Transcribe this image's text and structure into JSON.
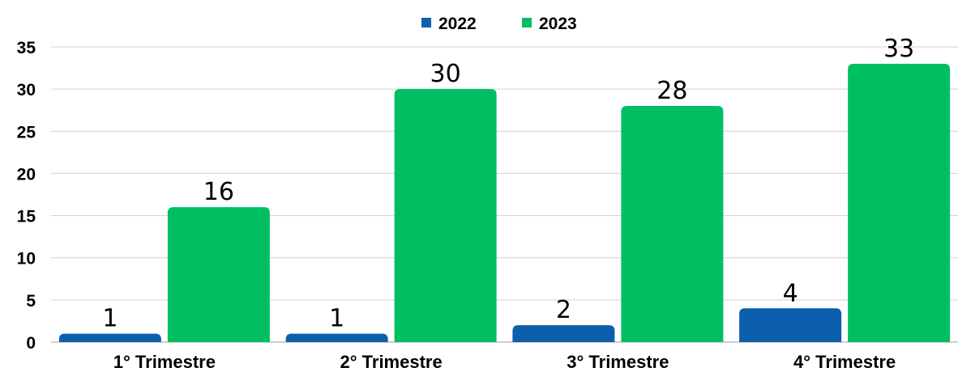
{
  "chart_data": {
    "type": "bar",
    "title": "",
    "xlabel": "",
    "ylabel": "",
    "categories": [
      "1° Trimestre",
      "2° Trimestre",
      "3° Trimestre",
      "4° Trimestre"
    ],
    "series": [
      {
        "name": "2022",
        "color": "#0b5fad",
        "values": [
          1,
          1,
          2,
          4
        ]
      },
      {
        "name": "2023",
        "color": "#00bf63",
        "values": [
          16,
          30,
          28,
          33
        ]
      }
    ],
    "ylim": [
      0,
      35
    ],
    "yticks": [
      "0",
      "5",
      "10",
      "15",
      "20",
      "25",
      "30",
      "35"
    ],
    "grid": true,
    "legend": "top-center"
  }
}
